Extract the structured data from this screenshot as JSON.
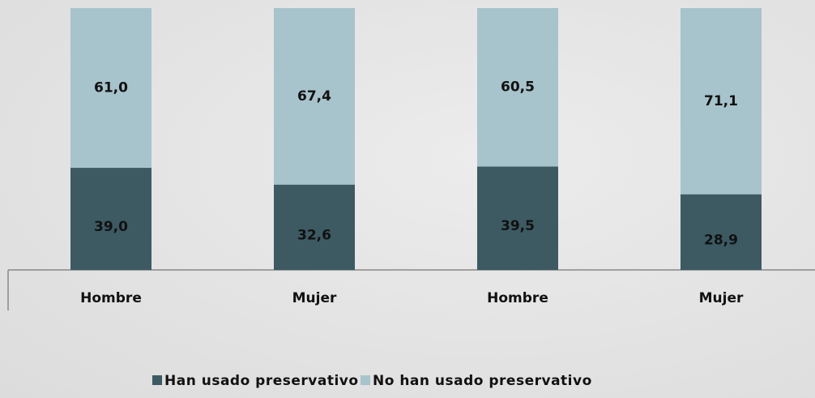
{
  "chart_data": {
    "type": "stacked_bar",
    "categories": [
      "Hombre",
      "Mujer",
      "Hombre",
      "Mujer"
    ],
    "series": [
      {
        "name": "Han usado preservativo",
        "color": "#3d5a63",
        "values": [
          39.0,
          32.6,
          39.5,
          28.9
        ],
        "value_labels": [
          "39,0",
          "32,6",
          "39,5",
          "28,9"
        ]
      },
      {
        "name": "No han usado preservativo",
        "color": "#a7c3cb",
        "values": [
          61.0,
          67.4,
          60.5,
          71.1
        ],
        "value_labels": [
          "61,0",
          "67,4",
          "60,5",
          "71,1"
        ]
      }
    ],
    "ylim": [
      0,
      100
    ],
    "legend": "bottom"
  }
}
